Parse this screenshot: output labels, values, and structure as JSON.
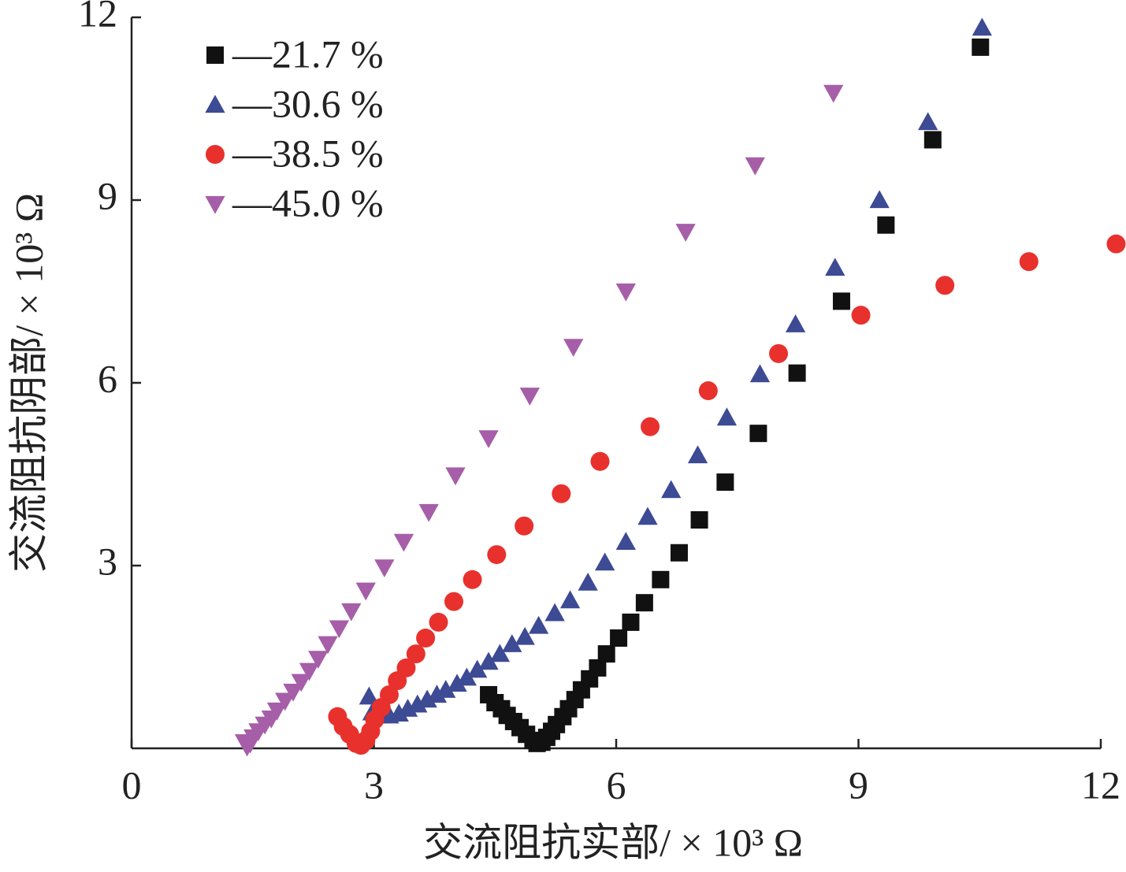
{
  "chart_data": {
    "type": "scatter",
    "xlabel": "交流阻抗实部/ × 10³ Ω",
    "ylabel": "交流阻抗阴部/ × 10³ Ω",
    "xlim": [
      0,
      12
    ],
    "ylim": [
      0,
      12
    ],
    "xticks": [
      0,
      3,
      6,
      9,
      12
    ],
    "yticks": [
      3,
      6,
      9,
      12
    ],
    "legend": "upper left",
    "series": [
      {
        "name": "—21.7 %",
        "color": "#111111",
        "marker": "square",
        "x": [
          10.51,
          9.92,
          9.34,
          8.79,
          8.24,
          7.76,
          7.35,
          7.03,
          6.78,
          6.55,
          6.35,
          6.18,
          6.03,
          5.88,
          5.77,
          5.67,
          5.57,
          5.49,
          5.41,
          5.34,
          5.26,
          5.2,
          5.14,
          5.08,
          5.02,
          4.97,
          4.89,
          4.81,
          4.73,
          4.65,
          4.58,
          4.5,
          4.42
        ],
        "y": [
          11.51,
          9.99,
          8.59,
          7.34,
          6.16,
          5.17,
          4.37,
          3.75,
          3.21,
          2.77,
          2.39,
          2.07,
          1.81,
          1.55,
          1.32,
          1.14,
          0.96,
          0.8,
          0.65,
          0.52,
          0.39,
          0.28,
          0.18,
          0.1,
          0.08,
          0.13,
          0.23,
          0.34,
          0.44,
          0.54,
          0.65,
          0.75,
          0.88
        ]
      },
      {
        "name": "—30.6 %",
        "color": "#3d4a94",
        "marker": "triangle-up",
        "x": [
          10.53,
          9.86,
          9.26,
          8.71,
          8.22,
          7.78,
          7.37,
          7.01,
          6.68,
          6.39,
          6.12,
          5.86,
          5.65,
          5.43,
          5.24,
          5.04,
          4.87,
          4.71,
          4.56,
          4.42,
          4.28,
          4.15,
          4.03,
          3.89,
          3.78,
          3.66,
          3.54,
          3.42,
          3.31,
          3.19,
          3.07,
          2.98,
          2.94
        ],
        "y": [
          11.83,
          10.28,
          9.0,
          7.89,
          6.96,
          6.14,
          5.43,
          4.81,
          4.24,
          3.8,
          3.39,
          3.05,
          2.72,
          2.43,
          2.22,
          2.01,
          1.83,
          1.71,
          1.55,
          1.42,
          1.29,
          1.16,
          1.06,
          0.96,
          0.88,
          0.8,
          0.72,
          0.65,
          0.57,
          0.54,
          0.54,
          0.59,
          0.85
        ]
      },
      {
        "name": "—38.5 %",
        "color": "#e8312d",
        "marker": "circle",
        "x": [
          12.19,
          11.11,
          10.07,
          9.03,
          8.01,
          7.14,
          6.42,
          5.8,
          5.32,
          4.86,
          4.52,
          4.22,
          3.99,
          3.8,
          3.64,
          3.52,
          3.4,
          3.29,
          3.19,
          3.09,
          3.01,
          2.96,
          2.9,
          2.84,
          2.78,
          2.7,
          2.62,
          2.55
        ],
        "y": [
          8.28,
          7.99,
          7.6,
          7.11,
          6.48,
          5.87,
          5.28,
          4.71,
          4.18,
          3.65,
          3.18,
          2.77,
          2.41,
          2.07,
          1.81,
          1.55,
          1.32,
          1.11,
          0.88,
          0.67,
          0.47,
          0.28,
          0.13,
          0.05,
          0.08,
          0.23,
          0.36,
          0.52
        ]
      },
      {
        "name": "—45.0 %",
        "color": "#a65ea8",
        "marker": "triangle-down",
        "x": [
          8.69,
          7.72,
          6.86,
          6.12,
          5.47,
          4.93,
          4.42,
          4.01,
          3.68,
          3.37,
          3.13,
          2.9,
          2.72,
          2.57,
          2.43,
          2.31,
          2.2,
          2.1,
          2.0,
          1.9,
          1.8,
          1.73,
          1.65,
          1.57,
          1.51,
          1.47,
          1.43,
          1.4
        ],
        "y": [
          10.76,
          9.57,
          8.48,
          7.5,
          6.59,
          5.79,
          5.09,
          4.48,
          3.88,
          3.39,
          2.97,
          2.59,
          2.25,
          1.97,
          1.71,
          1.47,
          1.27,
          1.09,
          0.93,
          0.78,
          0.62,
          0.49,
          0.39,
          0.28,
          0.18,
          0.08,
          0.03,
          0.1
        ]
      }
    ]
  }
}
